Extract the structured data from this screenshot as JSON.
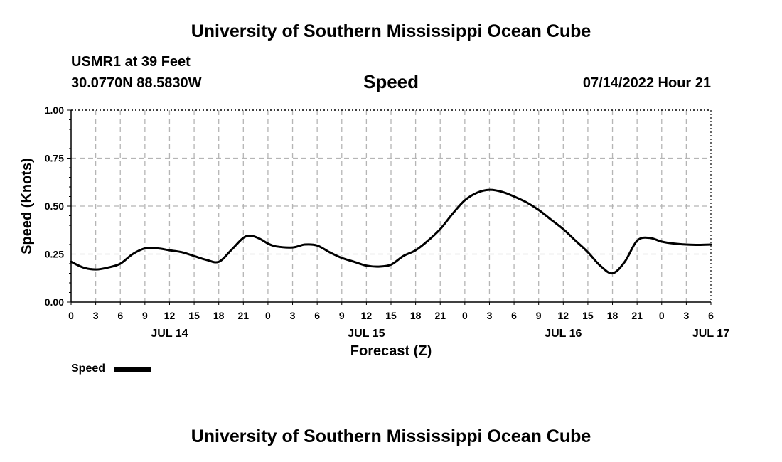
{
  "header": {
    "title": "University of Southern Mississippi Ocean Cube",
    "station": "USMR1 at 39 Feet",
    "coords": "30.0770N  88.5830W",
    "datetime": "07/14/2022 Hour 21"
  },
  "footer": {
    "title": "University of Southern Mississippi Ocean Cube"
  },
  "legend": {
    "label": "Speed"
  },
  "chart_data": {
    "type": "line",
    "title": "Speed",
    "xlabel": "Forecast (Z)",
    "ylabel": "Speed (Knots)",
    "xlim": [
      0,
      78
    ],
    "ylim": [
      0,
      1.0
    ],
    "yticks": [
      0,
      0.25,
      0.5,
      0.75,
      1.0
    ],
    "ytick_labels": [
      "0.00",
      "0.25",
      "0.50",
      "0.75",
      "1.00"
    ],
    "x_tick_hours": [
      0,
      3,
      6,
      9,
      12,
      15,
      18,
      21,
      24,
      27,
      30,
      33,
      36,
      39,
      42,
      45,
      48,
      51,
      54,
      57,
      60,
      63,
      66,
      69,
      72,
      75,
      78
    ],
    "x_tick_labels": [
      "0",
      "3",
      "6",
      "9",
      "12",
      "15",
      "18",
      "21",
      "0",
      "3",
      "6",
      "9",
      "12",
      "15",
      "18",
      "21",
      "0",
      "3",
      "6",
      "9",
      "12",
      "15",
      "18",
      "21",
      "0",
      "3",
      "6"
    ],
    "date_labels": [
      {
        "hour": 12,
        "label": "JUL 14"
      },
      {
        "hour": 36,
        "label": "JUL 15"
      },
      {
        "hour": 60,
        "label": "JUL 16"
      },
      {
        "hour": 78,
        "label": "JUL 17"
      }
    ],
    "grid": true,
    "series": [
      {
        "name": "Speed",
        "color": "#000000",
        "x": [
          0,
          1.5,
          3,
          4.5,
          6,
          7.5,
          9,
          10.5,
          12,
          13.5,
          15,
          16.5,
          18,
          19.5,
          21,
          22,
          23,
          24,
          25,
          27,
          28.5,
          30,
          31.5,
          33,
          34.5,
          36,
          37.5,
          39,
          40.5,
          42,
          43.5,
          45,
          46.5,
          48,
          49.5,
          51,
          52.5,
          54,
          55.5,
          57,
          58.5,
          60,
          61.5,
          63,
          64.5,
          66,
          67.5,
          69,
          70.5,
          72,
          73.5,
          75,
          76.5,
          78
        ],
        "values": [
          0.21,
          0.18,
          0.17,
          0.18,
          0.2,
          0.25,
          0.28,
          0.28,
          0.27,
          0.26,
          0.24,
          0.22,
          0.21,
          0.27,
          0.335,
          0.345,
          0.33,
          0.305,
          0.29,
          0.285,
          0.3,
          0.295,
          0.26,
          0.23,
          0.21,
          0.19,
          0.185,
          0.195,
          0.24,
          0.27,
          0.32,
          0.38,
          0.46,
          0.53,
          0.57,
          0.585,
          0.575,
          0.55,
          0.52,
          0.48,
          0.43,
          0.38,
          0.32,
          0.26,
          0.19,
          0.15,
          0.21,
          0.32,
          0.335,
          0.315,
          0.305,
          0.3,
          0.298,
          0.3
        ]
      }
    ]
  }
}
